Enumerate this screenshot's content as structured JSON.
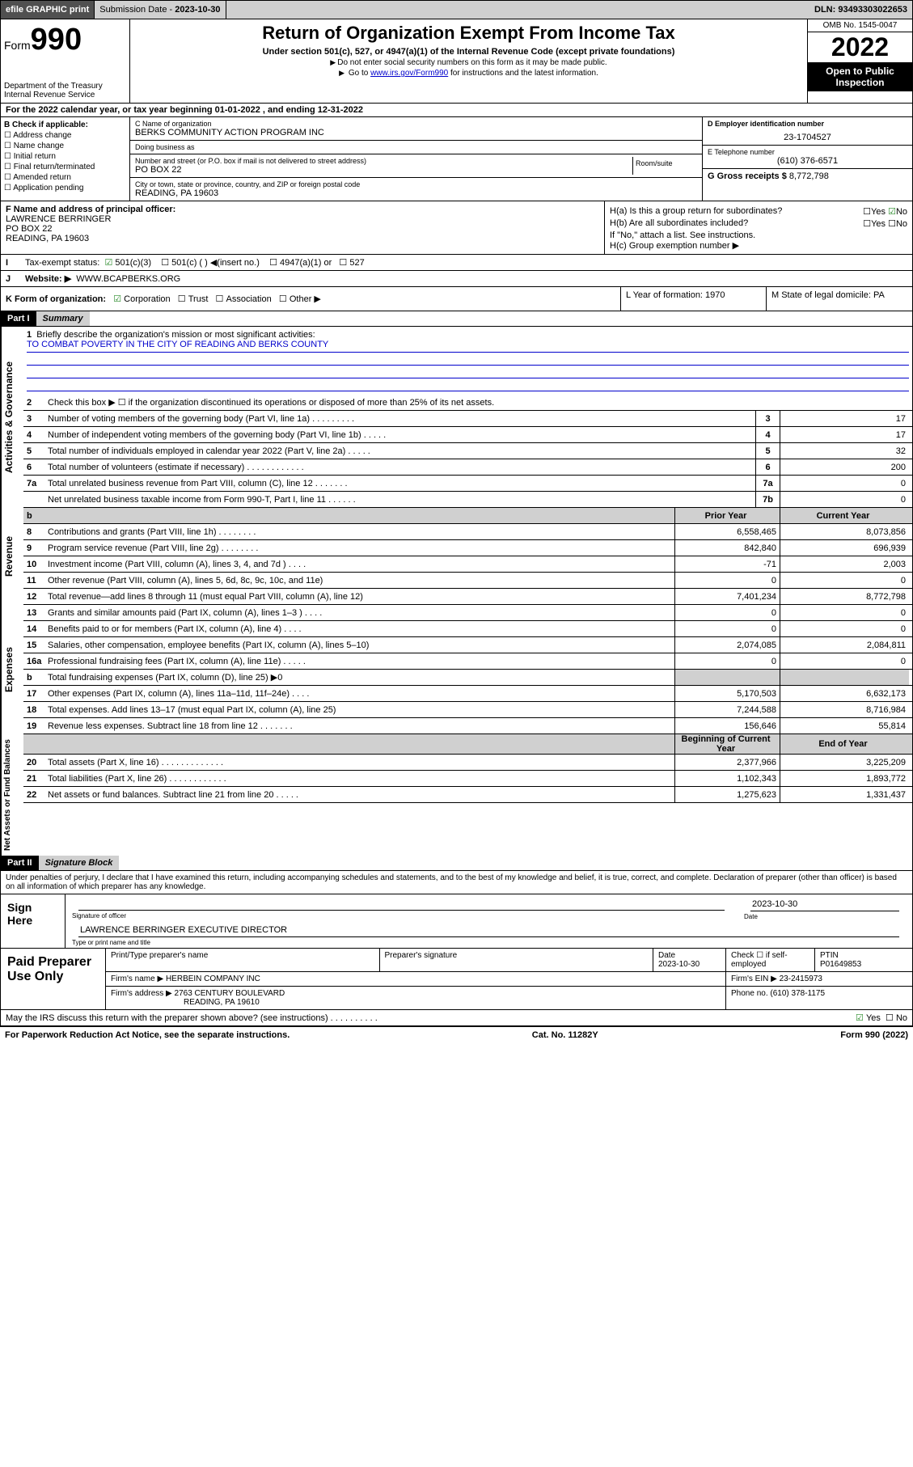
{
  "top": {
    "efile": "efile GRAPHIC print",
    "sub_lbl": "Submission Date -",
    "sub_date": "2023-10-30",
    "dln_lbl": "DLN:",
    "dln": "93493303022653"
  },
  "hdr": {
    "form_word": "Form",
    "form_num": "990",
    "dept": "Department of the Treasury",
    "irs": "Internal Revenue Service",
    "title": "Return of Organization Exempt From Income Tax",
    "sub": "Under section 501(c), 527, or 4947(a)(1) of the Internal Revenue Code (except private foundations)",
    "note1": "Do not enter social security numbers on this form as it may be made public.",
    "note2_pre": "Go to ",
    "note2_link": "www.irs.gov/Form990",
    "note2_post": " for instructions and the latest information.",
    "omb": "OMB No. 1545-0047",
    "year": "2022",
    "opi": "Open to Public Inspection"
  },
  "a": "For the 2022 calendar year, or tax year beginning 01-01-2022  , and ending 12-31-2022",
  "b": {
    "hdr": "B Check if applicable:",
    "opts": [
      "Address change",
      "Name change",
      "Initial return",
      "Final return/terminated",
      "Amended return",
      "Application pending"
    ]
  },
  "c": {
    "name_lbl": "C Name of organization",
    "name": "BERKS COMMUNITY ACTION PROGRAM INC",
    "dba_lbl": "Doing business as",
    "dba": "",
    "addr_lbl": "Number and street (or P.O. box if mail is not delivered to street address)",
    "room_lbl": "Room/suite",
    "addr": "PO BOX 22",
    "city_lbl": "City or town, state or province, country, and ZIP or foreign postal code",
    "city": "READING, PA  19603"
  },
  "d": {
    "lbl": "D Employer identification number",
    "val": "23-1704527"
  },
  "e": {
    "lbl": "E Telephone number",
    "val": "(610) 376-6571"
  },
  "g": {
    "lbl": "G Gross receipts $",
    "val": "8,772,798"
  },
  "f": {
    "lbl": "F Name and address of principal officer:",
    "name": "LAWRENCE BERRINGER",
    "addr1": "PO BOX 22",
    "addr2": "READING, PA  19603"
  },
  "h": {
    "a": "H(a)  Is this a group return for subordinates?",
    "a_yes": "Yes",
    "a_no": "No",
    "b": "H(b)  Are all subordinates included?",
    "b_yes": "Yes",
    "b_no": "No",
    "b_note": "If \"No,\" attach a list. See instructions.",
    "c": "H(c)  Group exemption number ▶"
  },
  "i": {
    "lbl": "I",
    "txt": "Tax-exempt status:",
    "o1": "501(c)(3)",
    "o2": "501(c) (  ) ◀(insert no.)",
    "o3": "4947(a)(1) or",
    "o4": "527"
  },
  "j": {
    "lbl": "J",
    "txt": "Website: ▶",
    "val": "WWW.BCAPBERKS.ORG"
  },
  "k": {
    "txt": "K Form of organization:",
    "o1": "Corporation",
    "o2": "Trust",
    "o3": "Association",
    "o4": "Other ▶"
  },
  "l": {
    "txt": "L Year of formation: 1970"
  },
  "m": {
    "txt": "M State of legal domicile: PA"
  },
  "p1": {
    "hdr": "Part I",
    "title": "Summary"
  },
  "tabs": {
    "gov": "Activities & Governance",
    "rev": "Revenue",
    "exp": "Expenses",
    "net": "Net Assets or Fund Balances"
  },
  "l1": {
    "txt": "Briefly describe the organization's mission or most significant activities:",
    "val": "TO COMBAT POVERTY IN THE CITY OF READING AND BERKS COUNTY"
  },
  "l2": "Check this box ▶ ☐  if the organization discontinued its operations or disposed of more than 25% of its net assets.",
  "lines_gov": [
    {
      "n": "3",
      "t": "Number of voting members of the governing body (Part VI, line 1a)  .  .  .  .  .  .  .  .  .",
      "c": "3",
      "v": "17"
    },
    {
      "n": "4",
      "t": "Number of independent voting members of the governing body (Part VI, line 1b)  .  .  .  .  .",
      "c": "4",
      "v": "17"
    },
    {
      "n": "5",
      "t": "Total number of individuals employed in calendar year 2022 (Part V, line 2a)  .  .  .  .  .",
      "c": "5",
      "v": "32"
    },
    {
      "n": "6",
      "t": "Total number of volunteers (estimate if necessary)  .  .  .  .  .  .  .  .  .  .  .  .",
      "c": "6",
      "v": "200"
    },
    {
      "n": "7a",
      "t": "Total unrelated business revenue from Part VIII, column (C), line 12  .  .  .  .  .  .  .",
      "c": "7a",
      "v": "0"
    },
    {
      "n": "",
      "t": "Net unrelated business taxable income from Form 990-T, Part I, line 11  .  .  .  .  .  .",
      "c": "7b",
      "v": "0"
    }
  ],
  "py": "Prior Year",
  "cy": "Current Year",
  "lines_rev": [
    {
      "n": "8",
      "t": "Contributions and grants (Part VIII, line 1h)  .  .  .  .  .  .  .  .",
      "p": "6,558,465",
      "c": "8,073,856"
    },
    {
      "n": "9",
      "t": "Program service revenue (Part VIII, line 2g)  .  .  .  .  .  .  .  .",
      "p": "842,840",
      "c": "696,939"
    },
    {
      "n": "10",
      "t": "Investment income (Part VIII, column (A), lines 3, 4, and 7d )  .  .  .  .",
      "p": "-71",
      "c": "2,003"
    },
    {
      "n": "11",
      "t": "Other revenue (Part VIII, column (A), lines 5, 6d, 8c, 9c, 10c, and 11e)",
      "p": "0",
      "c": "0"
    },
    {
      "n": "12",
      "t": "Total revenue—add lines 8 through 11 (must equal Part VIII, column (A), line 12)",
      "p": "7,401,234",
      "c": "8,772,798"
    }
  ],
  "lines_exp": [
    {
      "n": "13",
      "t": "Grants and similar amounts paid (Part IX, column (A), lines 1–3 )  .  .  .  .",
      "p": "0",
      "c": "0"
    },
    {
      "n": "14",
      "t": "Benefits paid to or for members (Part IX, column (A), line 4)  .  .  .  .",
      "p": "0",
      "c": "0"
    },
    {
      "n": "15",
      "t": "Salaries, other compensation, employee benefits (Part IX, column (A), lines 5–10)",
      "p": "2,074,085",
      "c": "2,084,811"
    },
    {
      "n": "16a",
      "t": "Professional fundraising fees (Part IX, column (A), line 11e)  .  .  .  .  .",
      "p": "0",
      "c": "0"
    },
    {
      "n": "b",
      "t": "Total fundraising expenses (Part IX, column (D), line 25) ▶0",
      "p": "",
      "c": "",
      "shade": true
    },
    {
      "n": "17",
      "t": "Other expenses (Part IX, column (A), lines 11a–11d, 11f–24e)  .  .  .  .",
      "p": "5,170,503",
      "c": "6,632,173"
    },
    {
      "n": "18",
      "t": "Total expenses. Add lines 13–17 (must equal Part IX, column (A), line 25)",
      "p": "7,244,588",
      "c": "8,716,984"
    },
    {
      "n": "19",
      "t": "Revenue less expenses. Subtract line 18 from line 12  .  .  .  .  .  .  .",
      "p": "156,646",
      "c": "55,814"
    }
  ],
  "by": "Beginning of Current Year",
  "ey": "End of Year",
  "lines_net": [
    {
      "n": "20",
      "t": "Total assets (Part X, line 16)  .  .  .  .  .  .  .  .  .  .  .  .  .",
      "p": "2,377,966",
      "c": "3,225,209"
    },
    {
      "n": "21",
      "t": "Total liabilities (Part X, line 26)  .  .  .  .  .  .  .  .  .  .  .  .",
      "p": "1,102,343",
      "c": "1,893,772"
    },
    {
      "n": "22",
      "t": "Net assets or fund balances. Subtract line 21 from line 20  .  .  .  .  .",
      "p": "1,275,623",
      "c": "1,331,437"
    }
  ],
  "p2": {
    "hdr": "Part II",
    "title": "Signature Block"
  },
  "pen": "Under penalties of perjury, I declare that I have examined this return, including accompanying schedules and statements, and to the best of my knowledge and belief, it is true, correct, and complete. Declaration of preparer (other than officer) is based on all information of which preparer has any knowledge.",
  "sign": {
    "lbl": "Sign Here",
    "sig_lbl": "Signature of officer",
    "date_lbl": "Date",
    "date": "2023-10-30",
    "name": "LAWRENCE BERRINGER  EXECUTIVE DIRECTOR",
    "name_lbl": "Type or print name and title"
  },
  "prep": {
    "lbl": "Paid Preparer Use Only",
    "c1": "Print/Type preparer's name",
    "c2": "Preparer's signature",
    "c3": "Date",
    "c3v": "2023-10-30",
    "c4": "Check ☐ if self-employed",
    "c5": "PTIN",
    "c5v": "P01649853",
    "firm_lbl": "Firm's name   ▶",
    "firm": "HERBEIN COMPANY INC",
    "ein_lbl": "Firm's EIN ▶",
    "ein": "23-2415973",
    "addr_lbl": "Firm's address ▶",
    "addr": "2763 CENTURY BOULEVARD",
    "addr2": "READING, PA  19610",
    "phone_lbl": "Phone no.",
    "phone": "(610) 378-1175"
  },
  "may": {
    "txt": "May the IRS discuss this return with the preparer shown above? (see instructions)  .  .  .  .  .  .  .  .  .  .",
    "yes": "Yes",
    "no": "No"
  },
  "foot": {
    "l": "For Paperwork Reduction Act Notice, see the separate instructions.",
    "m": "Cat. No. 11282Y",
    "r": "Form 990 (2022)"
  }
}
